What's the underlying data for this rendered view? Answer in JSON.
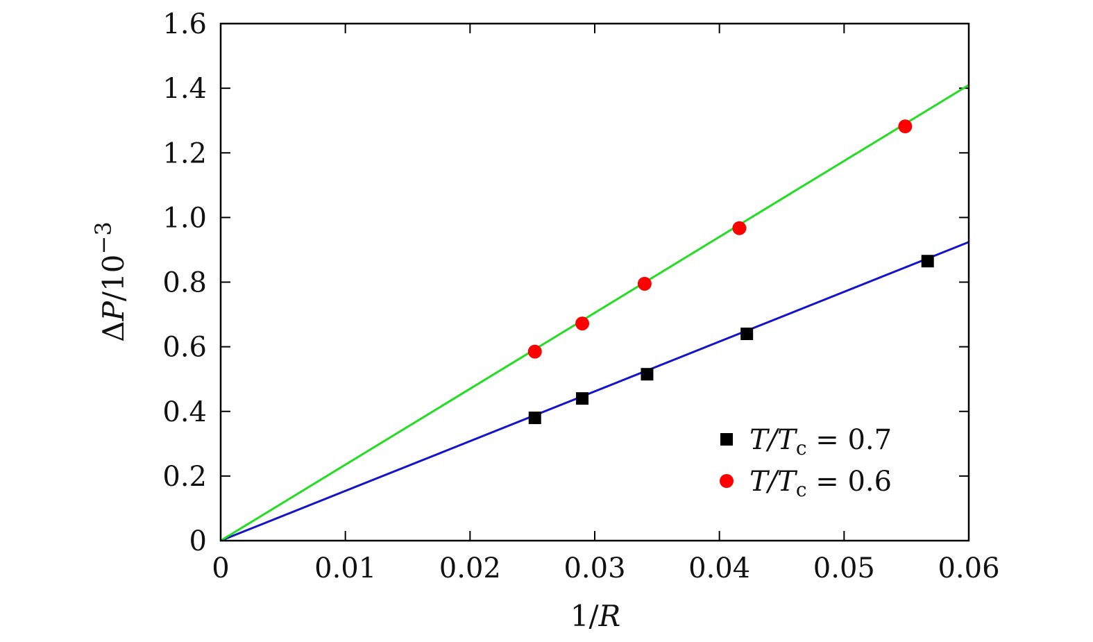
{
  "chart_data": {
    "type": "scatter",
    "xlabel": "1/R",
    "ylabel": "ΔP/10⁻³",
    "xlim": [
      0,
      0.06
    ],
    "ylim": [
      0,
      1.6
    ],
    "x_ticks": [
      "0",
      "0.01",
      "0.02",
      "0.03",
      "0.04",
      "0.05",
      "0.06"
    ],
    "y_ticks": [
      "0",
      "0.2",
      "0.4",
      "0.6",
      "0.8",
      "1.0",
      "1.2",
      "1.4",
      "1.6"
    ],
    "legend_position": "bottom-right",
    "series": [
      {
        "name": "T/Tc = 0.7",
        "label_var": "T/T",
        "label_sub": "c",
        "label_rest": " = 0.7",
        "marker": "square",
        "marker_color": "#000000",
        "fit_color": "#1515c8",
        "fit_slope": 15.4,
        "x": [
          0.0252,
          0.029,
          0.0342,
          0.0422,
          0.0567
        ],
        "y": [
          0.38,
          0.44,
          0.515,
          0.64,
          0.865
        ]
      },
      {
        "name": "T/Tc = 0.6",
        "label_var": "T/T",
        "label_sub": "c",
        "label_rest": " = 0.6",
        "marker": "circle",
        "marker_color": "#ff0000",
        "fit_color": "#22dd22",
        "fit_slope": 23.5,
        "x": [
          0.0252,
          0.029,
          0.034,
          0.0416,
          0.0549
        ],
        "y": [
          0.585,
          0.672,
          0.795,
          0.967,
          1.282
        ]
      }
    ]
  }
}
